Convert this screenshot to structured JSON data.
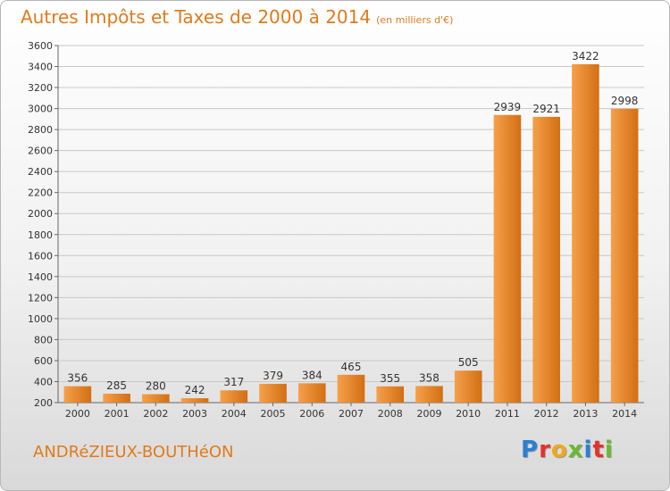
{
  "header": {
    "title": "Autres Impôts et Taxes de 2000 à 2014",
    "unit": "(en milliers d'€)"
  },
  "footer": {
    "commune": "ANDRéZIEUX-BOUTHéON",
    "logo_text": "Proxiti",
    "logo_colors": [
      "#2a7fd4",
      "#e8302a",
      "#f0a81c",
      "#6aba2e",
      "#2a7fd4",
      "#e8302a",
      "#6aba2e"
    ]
  },
  "colors": {
    "accent": "#e07a1c",
    "bar_light": "#f6a04a",
    "bar_dark": "#d26f14",
    "grid": "#c8c8c8",
    "axis_text": "#333333"
  },
  "chart_data": {
    "type": "bar",
    "title": "Autres Impôts et Taxes de 2000 à 2014",
    "subtitle": "(en milliers d'€)",
    "categories": [
      "2000",
      "2001",
      "2002",
      "2003",
      "2004",
      "2005",
      "2006",
      "2007",
      "2008",
      "2009",
      "2010",
      "2011",
      "2012",
      "2013",
      "2014"
    ],
    "values": [
      356,
      285,
      280,
      242,
      317,
      379,
      384,
      465,
      355,
      358,
      505,
      2939,
      2921,
      3422,
      2998
    ],
    "ylim": [
      200,
      3600
    ],
    "yticks": [
      200,
      400,
      600,
      800,
      1000,
      1200,
      1400,
      1600,
      1800,
      2000,
      2200,
      2400,
      2600,
      2800,
      3000,
      3200,
      3400,
      3600
    ],
    "grid": true,
    "data_labels": true
  }
}
